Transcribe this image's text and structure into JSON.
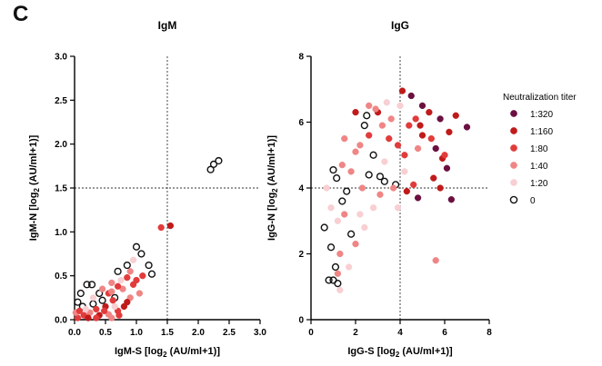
{
  "panel_label": "C",
  "colors": {
    "1:320": "#6b1040",
    "1:160": "#c01a1a",
    "1:80": "#e23b3b",
    "1:40": "#f08585",
    "1:20": "#f8cfd2",
    "0": "#ffffff"
  },
  "legend": {
    "title": "Neutralization titer",
    "entries": [
      "1:320",
      "1:160",
      "1:80",
      "1:40",
      "1:20",
      "0"
    ]
  },
  "chart_data": [
    {
      "type": "scatter",
      "title": "IgM",
      "xlabel_main": "IgM-S [log",
      "xlabel_sub": "2",
      "xlabel_rest": " (AU/ml+1)]",
      "ylabel_main": "IgM-N [log",
      "ylabel_sub": "2",
      "ylabel_rest": " (AU/ml+1)]",
      "xlim": [
        0,
        3
      ],
      "ylim": [
        0,
        3
      ],
      "xticks": [
        "0.0",
        "0.5",
        "1.0",
        "1.5",
        "2.0",
        "2.5",
        "3.0"
      ],
      "yticks": [
        "0.0",
        "0.5",
        "1.0",
        "1.5",
        "2.0",
        "2.5",
        "3.0"
      ],
      "xtick_values": [
        0,
        0.5,
        1.0,
        1.5,
        2.0,
        2.5,
        3.0
      ],
      "ytick_values": [
        0,
        0.5,
        1.0,
        1.5,
        2.0,
        2.5,
        3.0
      ],
      "threshold_x": 1.5,
      "threshold_y": 1.5,
      "points": [
        {
          "x": 2.2,
          "y": 1.71,
          "g": "0"
        },
        {
          "x": 2.25,
          "y": 1.77,
          "g": "0"
        },
        {
          "x": 2.33,
          "y": 1.81,
          "g": "0"
        },
        {
          "x": 1.4,
          "y": 1.05,
          "g": "1:80"
        },
        {
          "x": 1.55,
          "y": 1.07,
          "g": "1:160"
        },
        {
          "x": 1.0,
          "y": 0.83,
          "g": "0"
        },
        {
          "x": 1.08,
          "y": 0.75,
          "g": "0"
        },
        {
          "x": 0.95,
          "y": 0.68,
          "g": "1:20"
        },
        {
          "x": 0.85,
          "y": 0.62,
          "g": "0"
        },
        {
          "x": 1.2,
          "y": 0.62,
          "g": "0"
        },
        {
          "x": 1.25,
          "y": 0.52,
          "g": "0"
        },
        {
          "x": 0.9,
          "y": 0.55,
          "g": "1:40"
        },
        {
          "x": 0.7,
          "y": 0.55,
          "g": "0"
        },
        {
          "x": 0.6,
          "y": 0.42,
          "g": "1:40"
        },
        {
          "x": 1.0,
          "y": 0.45,
          "g": "1:80"
        },
        {
          "x": 1.1,
          "y": 0.5,
          "g": "1:80"
        },
        {
          "x": 0.85,
          "y": 0.48,
          "g": "1:80"
        },
        {
          "x": 0.2,
          "y": 0.4,
          "g": "0"
        },
        {
          "x": 0.28,
          "y": 0.4,
          "g": "0"
        },
        {
          "x": 0.4,
          "y": 0.3,
          "g": "0"
        },
        {
          "x": 0.1,
          "y": 0.3,
          "g": "0"
        },
        {
          "x": 0.05,
          "y": 0.2,
          "g": "0"
        },
        {
          "x": 0.13,
          "y": 0.15,
          "g": "0"
        },
        {
          "x": 0.3,
          "y": 0.18,
          "g": "0"
        },
        {
          "x": 0.45,
          "y": 0.22,
          "g": "0"
        },
        {
          "x": 0.65,
          "y": 0.25,
          "g": "0"
        },
        {
          "x": 0.78,
          "y": 0.35,
          "g": "1:40"
        },
        {
          "x": 0.7,
          "y": 0.38,
          "g": "1:80"
        },
        {
          "x": 0.55,
          "y": 0.3,
          "g": "1:80"
        },
        {
          "x": 0.62,
          "y": 0.22,
          "g": "1:80"
        },
        {
          "x": 0.5,
          "y": 0.15,
          "g": "1:160"
        },
        {
          "x": 0.35,
          "y": 0.12,
          "g": "1:80"
        },
        {
          "x": 0.25,
          "y": 0.08,
          "g": "1:40"
        },
        {
          "x": 0.15,
          "y": 0.05,
          "g": "1:80"
        },
        {
          "x": 0.05,
          "y": 0.02,
          "g": "1:80"
        },
        {
          "x": 0.4,
          "y": 0.05,
          "g": "1:160"
        },
        {
          "x": 0.55,
          "y": 0.06,
          "g": "1:40"
        },
        {
          "x": 0.7,
          "y": 0.1,
          "g": "1:80"
        },
        {
          "x": 0.8,
          "y": 0.15,
          "g": "1:160"
        },
        {
          "x": 0.9,
          "y": 0.25,
          "g": "1:40"
        },
        {
          "x": 0.3,
          "y": 0.25,
          "g": "1:20"
        },
        {
          "x": 0.18,
          "y": 0.12,
          "g": "1:20"
        },
        {
          "x": 0.45,
          "y": 0.35,
          "g": "1:40"
        },
        {
          "x": 0.6,
          "y": 0.32,
          "g": "1:40"
        },
        {
          "x": 1.05,
          "y": 0.3,
          "g": "1:40"
        },
        {
          "x": 0.75,
          "y": 0.45,
          "g": "1:20"
        },
        {
          "x": 0.95,
          "y": 0.4,
          "g": "1:80"
        },
        {
          "x": 0.35,
          "y": 0.02,
          "g": "1:80"
        },
        {
          "x": 0.22,
          "y": 0.02,
          "g": "1:160"
        },
        {
          "x": 0.6,
          "y": 0.02,
          "g": "1:40"
        },
        {
          "x": 0.02,
          "y": 0.08,
          "g": "1:40"
        },
        {
          "x": 0.08,
          "y": 0.1,
          "g": "1:80"
        },
        {
          "x": 0.48,
          "y": 0.1,
          "g": "1:80"
        },
        {
          "x": 0.65,
          "y": 0.15,
          "g": "1:20"
        },
        {
          "x": 0.85,
          "y": 0.2,
          "g": "1:160"
        },
        {
          "x": 0.72,
          "y": 0.05,
          "g": "1:80"
        }
      ]
    },
    {
      "type": "scatter",
      "title": "IgG",
      "xlabel_main": "IgG-S [log",
      "xlabel_sub": "2",
      "xlabel_rest": " (AU/ml+1)]",
      "ylabel_main": "IgG-N [log",
      "ylabel_sub": "2",
      "ylabel_rest": " (AU/ml+1)]",
      "xlim": [
        0,
        8
      ],
      "ylim": [
        0,
        8
      ],
      "xticks": [
        "0",
        "2",
        "4",
        "6",
        "8"
      ],
      "yticks": [
        "0",
        "2",
        "4",
        "6",
        "8"
      ],
      "xtick_values": [
        0,
        2,
        4,
        6,
        8
      ],
      "ytick_values": [
        0,
        2,
        4,
        6,
        8
      ],
      "threshold_x": 4,
      "threshold_y": 4,
      "points": [
        {
          "x": 0.6,
          "y": 2.8,
          "g": "0"
        },
        {
          "x": 0.8,
          "y": 1.2,
          "g": "0"
        },
        {
          "x": 1.0,
          "y": 1.2,
          "g": "0"
        },
        {
          "x": 1.2,
          "y": 1.1,
          "g": "0"
        },
        {
          "x": 1.1,
          "y": 1.6,
          "g": "0"
        },
        {
          "x": 0.9,
          "y": 2.2,
          "g": "0"
        },
        {
          "x": 1.0,
          "y": 4.55,
          "g": "0"
        },
        {
          "x": 1.15,
          "y": 4.3,
          "g": "0"
        },
        {
          "x": 1.4,
          "y": 3.6,
          "g": "0"
        },
        {
          "x": 1.8,
          "y": 2.6,
          "g": "0"
        },
        {
          "x": 1.6,
          "y": 3.9,
          "g": "0"
        },
        {
          "x": 2.4,
          "y": 5.9,
          "g": "0"
        },
        {
          "x": 2.5,
          "y": 6.2,
          "g": "0"
        },
        {
          "x": 2.6,
          "y": 4.4,
          "g": "0"
        },
        {
          "x": 3.1,
          "y": 4.35,
          "g": "0"
        },
        {
          "x": 3.3,
          "y": 4.2,
          "g": "0"
        },
        {
          "x": 3.8,
          "y": 4.1,
          "g": "0"
        },
        {
          "x": 2.8,
          "y": 5.0,
          "g": "0"
        },
        {
          "x": 4.1,
          "y": 6.95,
          "g": "1:160"
        },
        {
          "x": 4.5,
          "y": 6.8,
          "g": "1:320"
        },
        {
          "x": 5.0,
          "y": 6.5,
          "g": "1:320"
        },
        {
          "x": 5.3,
          "y": 6.3,
          "g": "1:160"
        },
        {
          "x": 5.8,
          "y": 6.1,
          "g": "1:320"
        },
        {
          "x": 6.5,
          "y": 6.2,
          "g": "1:160"
        },
        {
          "x": 7.0,
          "y": 5.85,
          "g": "1:320"
        },
        {
          "x": 6.2,
          "y": 5.7,
          "g": "1:160"
        },
        {
          "x": 5.6,
          "y": 5.2,
          "g": "1:320"
        },
        {
          "x": 5.9,
          "y": 4.9,
          "g": "1:160"
        },
        {
          "x": 6.1,
          "y": 4.6,
          "g": "1:320"
        },
        {
          "x": 5.5,
          "y": 4.3,
          "g": "1:160"
        },
        {
          "x": 5.8,
          "y": 4.0,
          "g": "1:160"
        },
        {
          "x": 6.3,
          "y": 3.65,
          "g": "1:320"
        },
        {
          "x": 4.8,
          "y": 3.7,
          "g": "1:320"
        },
        {
          "x": 4.3,
          "y": 3.9,
          "g": "1:160"
        },
        {
          "x": 4.6,
          "y": 4.1,
          "g": "1:80"
        },
        {
          "x": 5.0,
          "y": 5.6,
          "g": "1:160"
        },
        {
          "x": 4.4,
          "y": 5.9,
          "g": "1:80"
        },
        {
          "x": 4.7,
          "y": 6.1,
          "g": "1:80"
        },
        {
          "x": 5.4,
          "y": 5.5,
          "g": "1:80"
        },
        {
          "x": 6.0,
          "y": 5.0,
          "g": "1:80"
        },
        {
          "x": 4.2,
          "y": 5.0,
          "g": "1:80"
        },
        {
          "x": 3.9,
          "y": 5.3,
          "g": "1:80"
        },
        {
          "x": 3.5,
          "y": 5.5,
          "g": "1:80"
        },
        {
          "x": 3.0,
          "y": 6.3,
          "g": "1:160"
        },
        {
          "x": 2.0,
          "y": 6.3,
          "g": "1:160"
        },
        {
          "x": 2.6,
          "y": 6.5,
          "g": "1:40"
        },
        {
          "x": 2.9,
          "y": 6.4,
          "g": "1:40"
        },
        {
          "x": 3.6,
          "y": 6.1,
          "g": "1:40"
        },
        {
          "x": 3.2,
          "y": 5.9,
          "g": "1:40"
        },
        {
          "x": 2.0,
          "y": 5.1,
          "g": "1:40"
        },
        {
          "x": 2.2,
          "y": 5.3,
          "g": "1:40"
        },
        {
          "x": 1.5,
          "y": 5.5,
          "g": "1:40"
        },
        {
          "x": 1.4,
          "y": 4.7,
          "g": "1:40"
        },
        {
          "x": 1.8,
          "y": 4.5,
          "g": "1:40"
        },
        {
          "x": 2.3,
          "y": 4.0,
          "g": "1:40"
        },
        {
          "x": 3.1,
          "y": 3.8,
          "g": "1:40"
        },
        {
          "x": 3.7,
          "y": 4.0,
          "g": "1:40"
        },
        {
          "x": 1.5,
          "y": 3.2,
          "g": "1:40"
        },
        {
          "x": 2.0,
          "y": 2.3,
          "g": "1:40"
        },
        {
          "x": 1.3,
          "y": 2.0,
          "g": "1:40"
        },
        {
          "x": 1.2,
          "y": 1.4,
          "g": "1:40"
        },
        {
          "x": 5.6,
          "y": 1.8,
          "g": "1:40"
        },
        {
          "x": 4.8,
          "y": 5.2,
          "g": "1:40"
        },
        {
          "x": 3.3,
          "y": 4.8,
          "g": "1:20"
        },
        {
          "x": 2.8,
          "y": 3.4,
          "g": "1:20"
        },
        {
          "x": 2.2,
          "y": 3.2,
          "g": "1:20"
        },
        {
          "x": 1.2,
          "y": 3.0,
          "g": "1:20"
        },
        {
          "x": 0.9,
          "y": 3.4,
          "g": "1:20"
        },
        {
          "x": 1.7,
          "y": 1.6,
          "g": "1:20"
        },
        {
          "x": 1.3,
          "y": 0.9,
          "g": "1:20"
        },
        {
          "x": 3.9,
          "y": 3.4,
          "g": "1:20"
        },
        {
          "x": 4.2,
          "y": 4.5,
          "g": "1:20"
        },
        {
          "x": 4.0,
          "y": 6.5,
          "g": "1:20"
        },
        {
          "x": 3.4,
          "y": 6.6,
          "g": "1:20"
        },
        {
          "x": 2.4,
          "y": 2.8,
          "g": "1:20"
        },
        {
          "x": 0.7,
          "y": 4.0,
          "g": "1:20"
        },
        {
          "x": 2.6,
          "y": 5.6,
          "g": "1:80"
        },
        {
          "x": 4.9,
          "y": 5.9,
          "g": "1:160"
        }
      ]
    }
  ]
}
